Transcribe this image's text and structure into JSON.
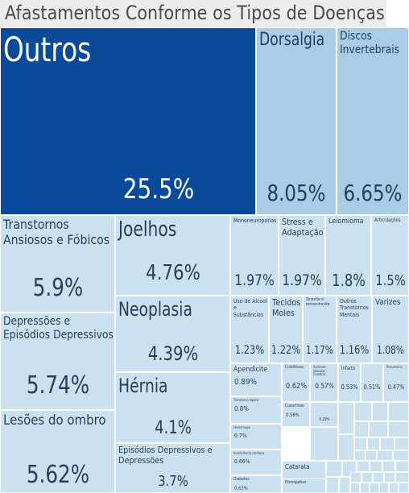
{
  "chart_data": {
    "type": "treemap",
    "title": "Afastamentos Conforme os Tipos de Doenças",
    "colors": {
      "dark": "#0a4a9a",
      "mid": "#a9cde6",
      "light": "#cbe1f0",
      "text_dark": "#26405c",
      "text_light": "#ffffff"
    },
    "items": [
      {
        "label": "Outros",
        "value": 25.5,
        "display": "25.5%"
      },
      {
        "label": "Dorsalgia",
        "value": 8.05,
        "display": "8.05%"
      },
      {
        "label": "Discos Invertebrais",
        "value": 6.65,
        "display": "6.65%"
      },
      {
        "label": "Transtornos Ansiosos e Fóbicos",
        "value": 5.9,
        "display": "5.9%"
      },
      {
        "label": "Depressões e Episódios Depressivos",
        "value": 5.74,
        "display": "5.74%"
      },
      {
        "label": "Lesões do ombro",
        "value": 5.62,
        "display": "5.62%"
      },
      {
        "label": "Joelhos",
        "value": 4.76,
        "display": "4.76%"
      },
      {
        "label": "Neoplasia",
        "value": 4.39,
        "display": "4.39%"
      },
      {
        "label": "Hérnia",
        "value": 4.1,
        "display": "4.1%"
      },
      {
        "label": "Episódios Depressivos e Depressões",
        "value": 3.7,
        "display": "3.7%"
      },
      {
        "label": "Mononeuropatias",
        "value": 1.97,
        "display": "1.97%"
      },
      {
        "label": "Stress e Adaptação",
        "value": 1.97,
        "display": "1.97%"
      },
      {
        "label": "Leiomioma",
        "value": 1.8,
        "display": "1.8%"
      },
      {
        "label": "Articulações",
        "value": 1.5,
        "display": "1.5%"
      },
      {
        "label": "Uso de Álcool e Substâncias",
        "value": 1.23,
        "display": "1.23%"
      },
      {
        "label": "Tecidos Moles",
        "value": 1.22,
        "display": "1.22%"
      },
      {
        "label": "Sinovite e tenossinovite",
        "value": 1.17,
        "display": "1.17%"
      },
      {
        "label": "Outros Transtornos Mentais",
        "value": 1.16,
        "display": "1.16%"
      },
      {
        "label": "Varizes",
        "value": 1.08,
        "display": "1.08%"
      },
      {
        "label": "Apendicite",
        "value": 0.89,
        "display": "0.89%"
      },
      {
        "label": "Colelitíase",
        "value": 0.62,
        "display": "0.62%"
      },
      {
        "label": "Acidente Vascular Cerebral",
        "value": 0.57,
        "display": "0.57%"
      },
      {
        "label": "Infarto",
        "value": 0.53,
        "display": "0.53%"
      },
      {
        "label": "",
        "value": 0.51,
        "display": "0.51%"
      },
      {
        "label": "Pneumonia",
        "value": 0.47,
        "display": "0.47%"
      },
      {
        "label": "Transtorno bipolar",
        "value": 0.8,
        "display": "0.8%"
      },
      {
        "label": "Coxartrose",
        "value": 0.58,
        "display": "0.58%"
      },
      {
        "label": "",
        "value": 0.29,
        "display": "0.29%"
      },
      {
        "label": "Hemorragia",
        "value": 0.7,
        "display": "0.7%"
      },
      {
        "label": "Insuficiência cardíaca",
        "value": 0.66,
        "display": "0.66%"
      },
      {
        "label": "Diabetes",
        "value": 0.63,
        "display": "0.63%"
      },
      {
        "label": "Catarata",
        "value": null,
        "display": ""
      },
      {
        "label": "Dorsopatias",
        "value": null,
        "display": ""
      }
    ]
  }
}
